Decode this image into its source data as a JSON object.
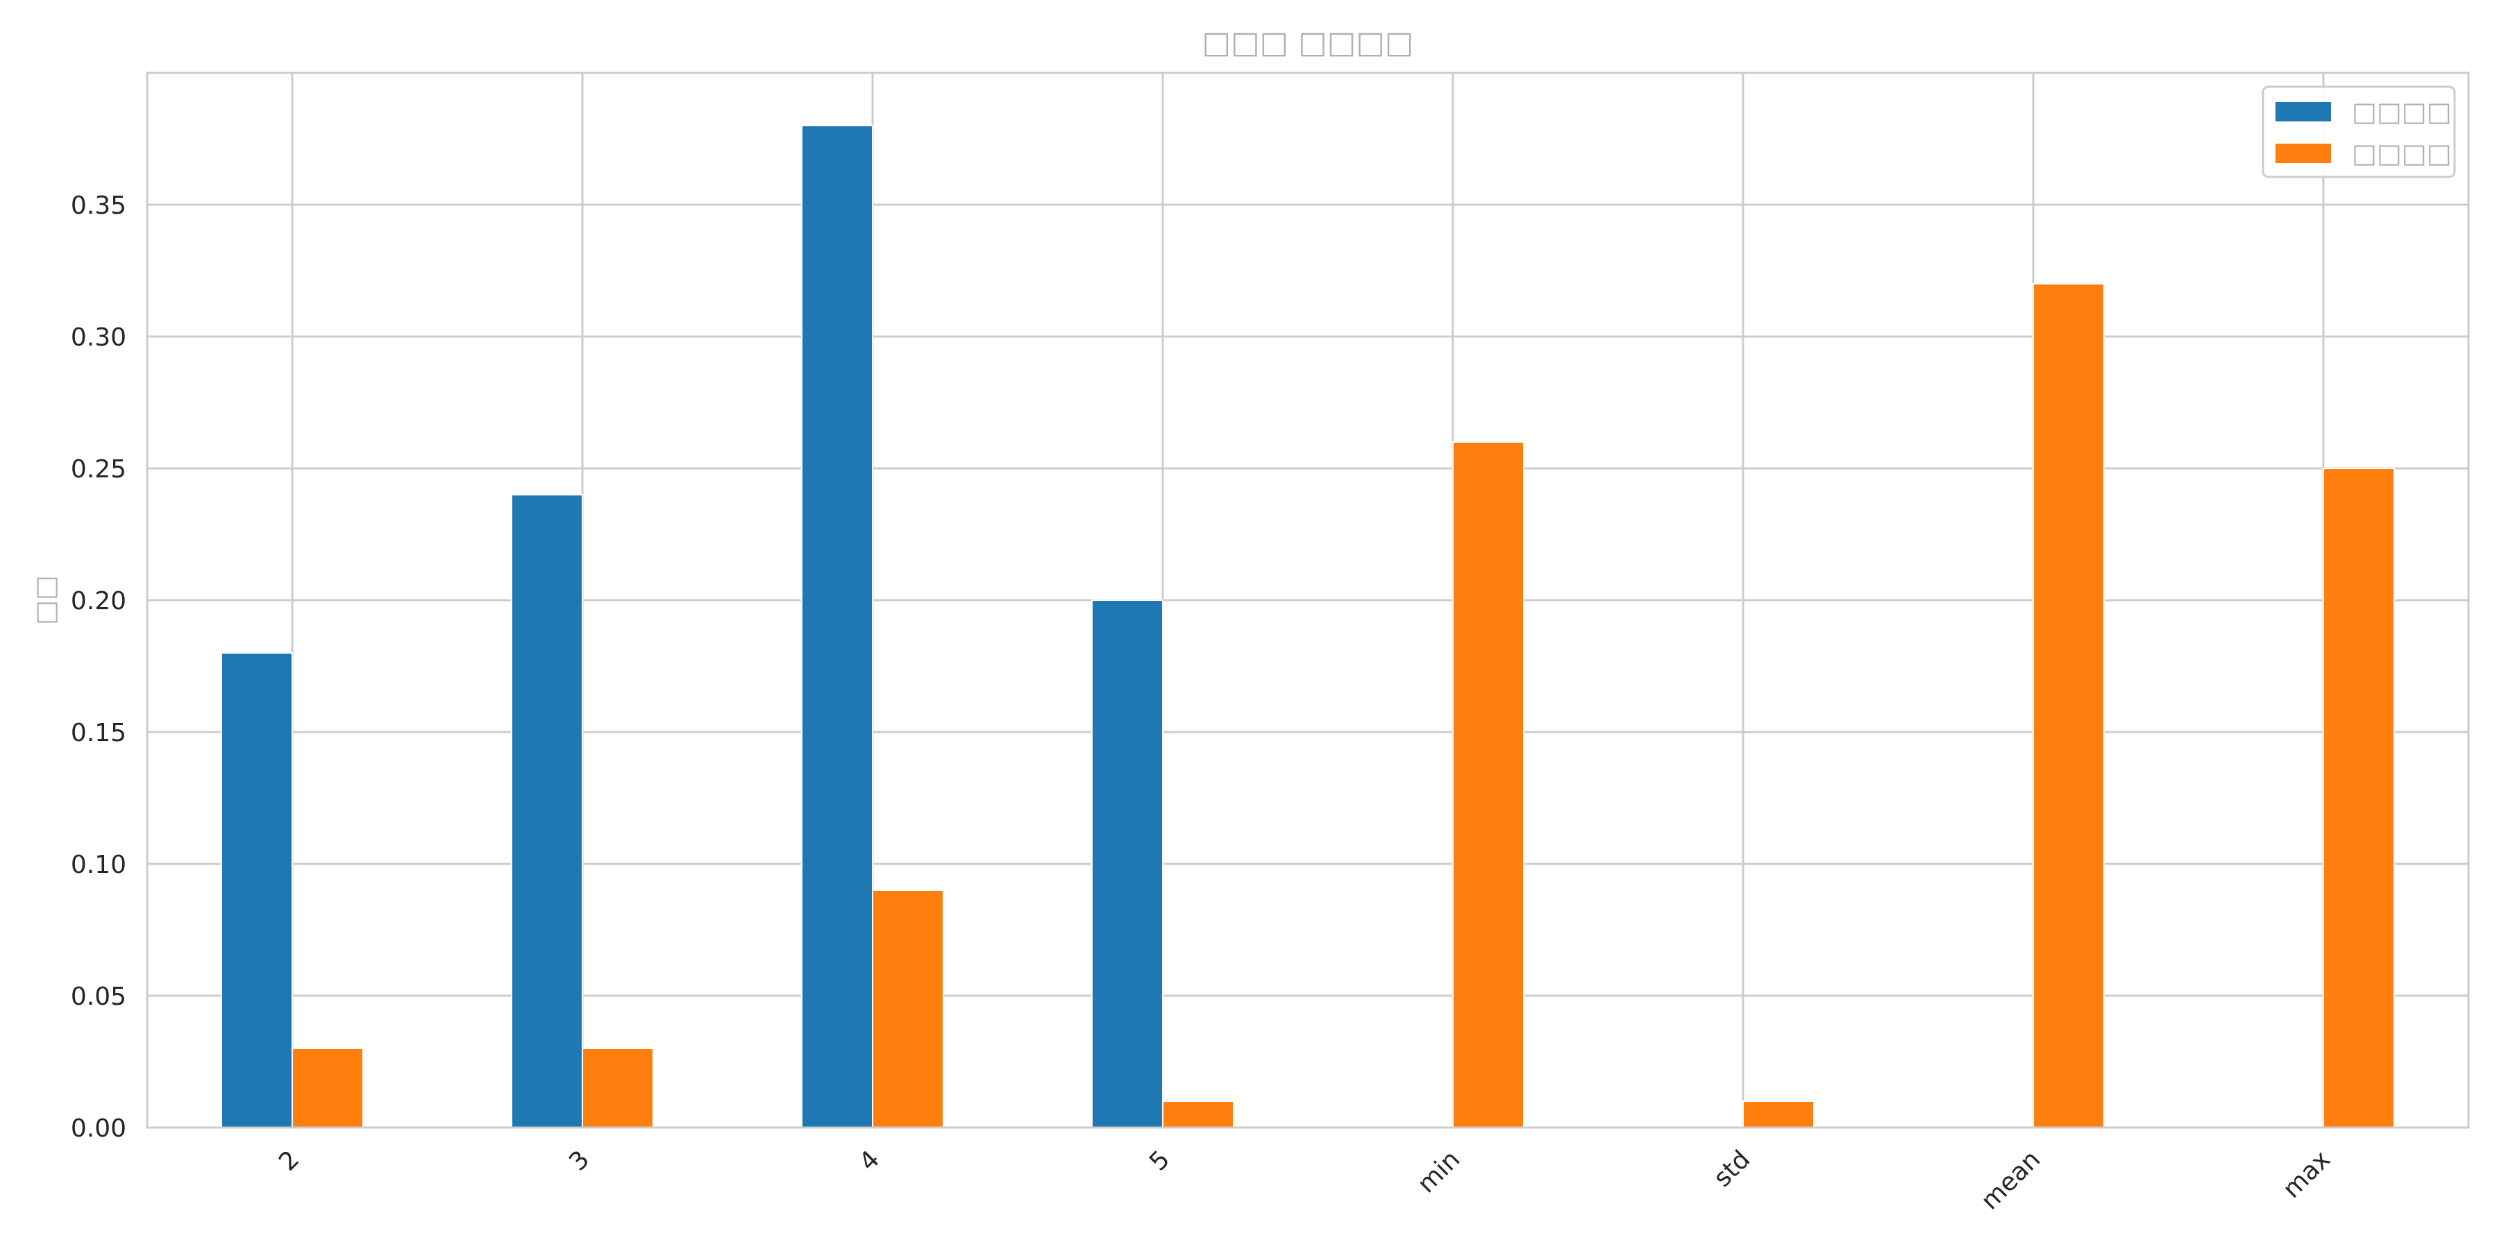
{
  "chart_data": {
    "type": "bar",
    "title": "□□□ □□□□",
    "xlabel": "",
    "ylabel": "□□",
    "categories": [
      "2",
      "3",
      "4",
      "5",
      "min",
      "std",
      "mean",
      "max"
    ],
    "series": [
      {
        "name": "□□□□",
        "color": "#1f77b4",
        "values": [
          0.18,
          0.24,
          0.38,
          0.2,
          0,
          0,
          0,
          0
        ]
      },
      {
        "name": "□□□□",
        "color": "#ff7f0e",
        "values": [
          0.03,
          0.03,
          0.09,
          0.01,
          0.26,
          0.01,
          0.32,
          0.25
        ]
      }
    ],
    "ylim": [
      0,
      0.4
    ],
    "yticks": [
      "0.00",
      "0.05",
      "0.10",
      "0.15",
      "0.20",
      "0.25",
      "0.30",
      "0.35"
    ],
    "grid": true,
    "legend": "top-right",
    "xtick_rotation": 45
  }
}
